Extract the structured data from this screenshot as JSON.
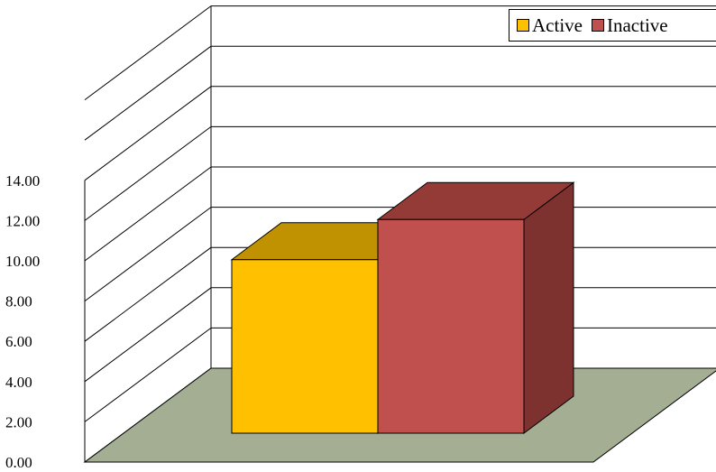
{
  "chart_data": {
    "type": "bar",
    "three_d": true,
    "categories": [
      ""
    ],
    "series": [
      {
        "name": "Active",
        "values": [
          10.8
        ],
        "color": "#FFC000",
        "top_color": "#C09100"
      },
      {
        "name": "Inactive",
        "values": [
          13.3
        ],
        "color": "#C0504D",
        "top_color": "#943A37",
        "side_color": "#7E3230"
      }
    ],
    "y_ticks": [
      "0.00",
      "2.00",
      "4.00",
      "6.00",
      "8.00",
      "10.00",
      "12.00",
      "14.00"
    ],
    "ylim": [
      0,
      18
    ],
    "grid": true,
    "floor_color": "#A3AE93",
    "legend_position": "top-right",
    "title": "",
    "xlabel": "",
    "ylabel": ""
  }
}
